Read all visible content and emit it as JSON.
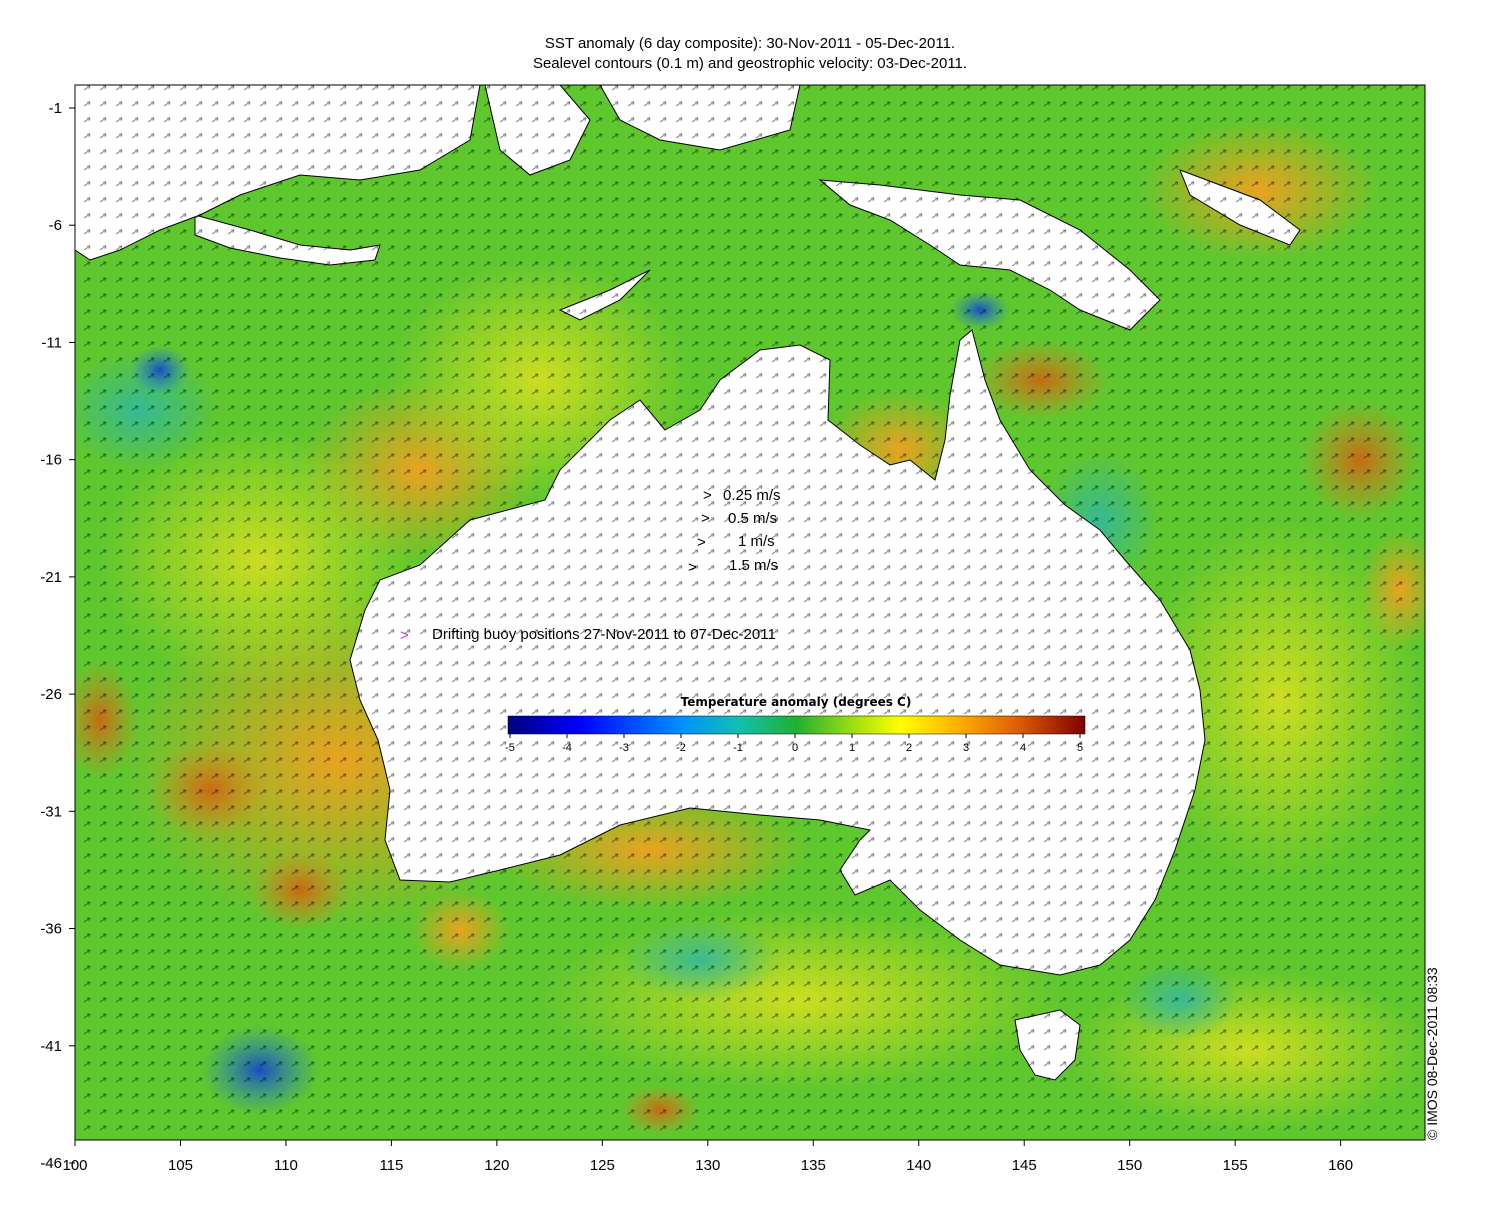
{
  "title": {
    "line1": "SST anomaly (6 day composite): 30-Nov-2011 - 05-Dec-2011.",
    "line2": "Sealevel contours (0.1 m) and geostrophic velocity: 03-Dec-2011."
  },
  "axes": {
    "x_ticks": [
      "100",
      "105",
      "110",
      "115",
      "120",
      "125",
      "130",
      "135",
      "140",
      "145",
      "150",
      "155",
      "160"
    ],
    "y_ticks": [
      "-1",
      "-6",
      "-11",
      "-16",
      "-21",
      "-26",
      "-31",
      "-36",
      "-41",
      "-46"
    ]
  },
  "velocity_legend": [
    {
      "label": "0.25 m/s",
      "speed": 0.25
    },
    {
      "label": "0.5 m/s",
      "speed": 0.5
    },
    {
      "label": "1 m/s",
      "speed": 1
    },
    {
      "label": "1.5 m/s",
      "speed": 1.5
    }
  ],
  "buoy_legend": {
    "symbol": ">",
    "label": "Drifting buoy positions 27-Nov-2011 to 07-Dec-2011",
    "color": "#cc33cc"
  },
  "colorbar": {
    "title": "Temperature anomaly (degrees C)",
    "min": -5,
    "max": 5,
    "ticks": [
      "-5",
      "-4",
      "-3",
      "-2",
      "-1",
      "0",
      "1",
      "2",
      "3",
      "4",
      "5"
    ],
    "colors": [
      "#00007f",
      "#0000ff",
      "#0080ff",
      "#00ffff",
      "#80ff80",
      "#ffff00",
      "#ff8000",
      "#ff0000",
      "#7f0000"
    ]
  },
  "credit": "© IMOS 08-Dec-2011 08:33",
  "colors": {
    "ocean_base": "#5fc72e",
    "land": "#ffffff",
    "warm": "#f0a020",
    "cool": "#3ac0a0"
  }
}
